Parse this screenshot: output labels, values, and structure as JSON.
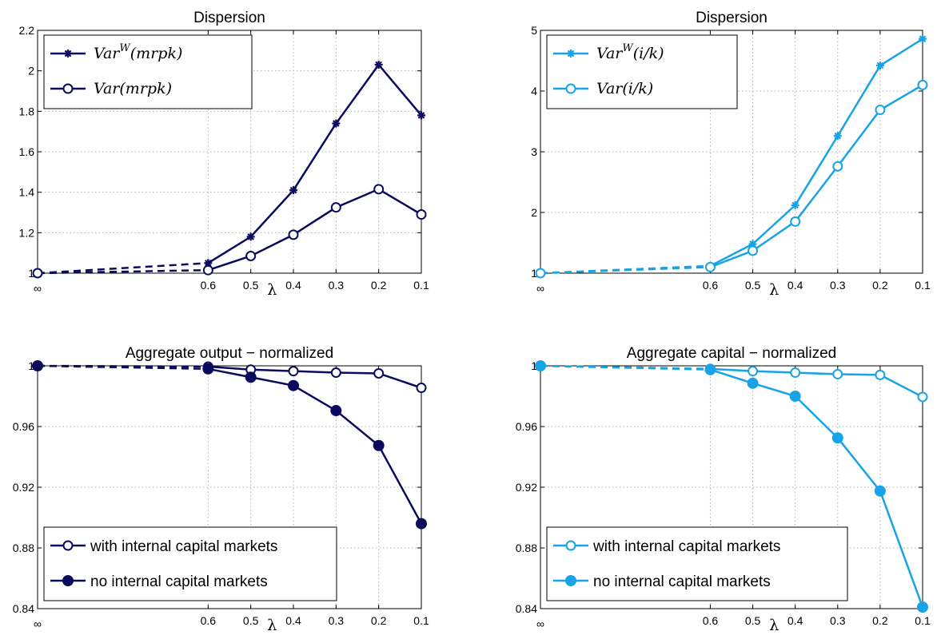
{
  "colors": {
    "navy": "#0b0b5e",
    "sky": "#17a3e6"
  },
  "chart_data": [
    {
      "type": "line",
      "title": "Dispersion",
      "xlabel": "λ",
      "x_ticks": [
        "∞",
        "0.6",
        "0.5",
        "0.4",
        "0.3",
        "0.2",
        "0.1"
      ],
      "x_tick_positions": [
        1.0,
        0.6,
        0.5,
        0.4,
        0.3,
        0.2,
        0.1
      ],
      "ylim": [
        1,
        2.2
      ],
      "y_ticks": [
        "1",
        "1.2",
        "1.4",
        "1.6",
        "1.8",
        "2",
        "2.2"
      ],
      "y_tick_values": [
        1,
        1.2,
        1.4,
        1.6,
        1.8,
        2,
        2.2
      ],
      "grid": true,
      "legend_position": "top-left",
      "color": "navy",
      "series": [
        {
          "name_base": "Var",
          "name_sup": "W",
          "name_arg": "(mrpk)",
          "marker": "star",
          "infinity_value": 1.0,
          "x": [
            0.6,
            0.5,
            0.4,
            0.3,
            0.2,
            0.1
          ],
          "values": [
            1.05,
            1.18,
            1.41,
            1.74,
            2.03,
            1.78
          ]
        },
        {
          "name_base": "Var",
          "name_sup": "",
          "name_arg": "(mrpk)",
          "marker": "open-circle",
          "infinity_value": 1.0,
          "x": [
            0.6,
            0.5,
            0.4,
            0.3,
            0.2,
            0.1
          ],
          "values": [
            1.015,
            1.085,
            1.19,
            1.325,
            1.415,
            1.29
          ]
        }
      ]
    },
    {
      "type": "line",
      "title": "Dispersion",
      "xlabel": "λ",
      "x_ticks": [
        "∞",
        "0.6",
        "0.5",
        "0.4",
        "0.3",
        "0.2",
        "0.1"
      ],
      "x_tick_positions": [
        1.0,
        0.6,
        0.5,
        0.4,
        0.3,
        0.2,
        0.1
      ],
      "ylim": [
        1,
        5
      ],
      "y_ticks": [
        "1",
        "2",
        "3",
        "4",
        "5"
      ],
      "y_tick_values": [
        1,
        2,
        3,
        4,
        5
      ],
      "grid": true,
      "legend_position": "top-left",
      "color": "sky",
      "series": [
        {
          "name_base": "Var",
          "name_sup": "W",
          "name_arg": "(i/k)",
          "marker": "star",
          "infinity_value": 1.0,
          "x": [
            0.6,
            0.5,
            0.4,
            0.3,
            0.2,
            0.1
          ],
          "values": [
            1.12,
            1.48,
            2.12,
            3.26,
            4.42,
            4.86
          ]
        },
        {
          "name_base": "Var",
          "name_sup": "",
          "name_arg": "(i/k)",
          "marker": "open-circle",
          "infinity_value": 1.0,
          "x": [
            0.6,
            0.5,
            0.4,
            0.3,
            0.2,
            0.1
          ],
          "values": [
            1.1,
            1.37,
            1.85,
            2.76,
            3.69,
            4.1
          ]
        }
      ]
    },
    {
      "type": "line",
      "title": "Aggregate output − normalized",
      "xlabel": "λ",
      "x_ticks": [
        "∞",
        "0.6",
        "0.5",
        "0.4",
        "0.3",
        "0.2",
        "0.1"
      ],
      "x_tick_positions": [
        1.0,
        0.6,
        0.5,
        0.4,
        0.3,
        0.2,
        0.1
      ],
      "ylim": [
        0.84,
        1
      ],
      "y_ticks": [
        "0.84",
        "0.88",
        "0.92",
        "0.96",
        "1"
      ],
      "y_tick_values": [
        0.84,
        0.88,
        0.92,
        0.96,
        1
      ],
      "grid": true,
      "legend_position": "bottom-left",
      "color": "navy",
      "series": [
        {
          "name": "with internal capital markets",
          "marker": "open-circle",
          "infinity_value": 1.0,
          "x": [
            0.6,
            0.5,
            0.4,
            0.3,
            0.2,
            0.1
          ],
          "values": [
            0.9995,
            0.9975,
            0.9965,
            0.9955,
            0.995,
            0.9855
          ]
        },
        {
          "name": "no internal capital markets",
          "marker": "filled-circle",
          "infinity_value": 1.0,
          "x": [
            0.6,
            0.5,
            0.4,
            0.3,
            0.2,
            0.1
          ],
          "values": [
            0.998,
            0.9925,
            0.987,
            0.9705,
            0.9475,
            0.896
          ]
        }
      ]
    },
    {
      "type": "line",
      "title": "Aggregate capital − normalized",
      "xlabel": "λ",
      "x_ticks": [
        "∞",
        "0.6",
        "0.5",
        "0.4",
        "0.3",
        "0.2",
        "0.1"
      ],
      "x_tick_positions": [
        1.0,
        0.6,
        0.5,
        0.4,
        0.3,
        0.2,
        0.1
      ],
      "ylim": [
        0.84,
        1
      ],
      "y_ticks": [
        "0.84",
        "0.88",
        "0.92",
        "0.96",
        "1"
      ],
      "y_tick_values": [
        0.84,
        0.88,
        0.92,
        0.96,
        1
      ],
      "grid": true,
      "legend_position": "bottom-left",
      "color": "sky",
      "series": [
        {
          "name": "with internal capital markets",
          "marker": "open-circle",
          "infinity_value": 1.0,
          "x": [
            0.6,
            0.5,
            0.4,
            0.3,
            0.2,
            0.1
          ],
          "values": [
            0.998,
            0.9965,
            0.9955,
            0.9945,
            0.994,
            0.9795
          ]
        },
        {
          "name": "no internal capital markets",
          "marker": "filled-circle",
          "infinity_value": 1.0,
          "x": [
            0.6,
            0.5,
            0.4,
            0.3,
            0.2,
            0.1
          ],
          "values": [
            0.9975,
            0.9885,
            0.98,
            0.9525,
            0.9175,
            0.841
          ]
        }
      ]
    }
  ]
}
